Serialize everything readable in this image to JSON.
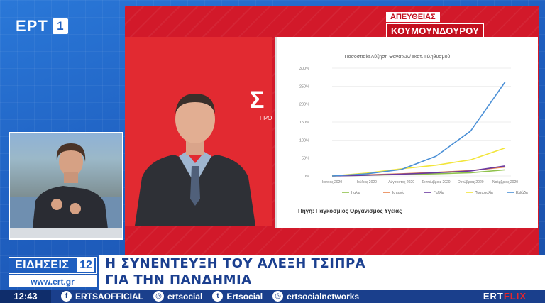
{
  "channel": {
    "name": "ΕΡΤ",
    "number": "1"
  },
  "live_badge": {
    "top": "ΑΠΕΥΘΕΙΑΣ",
    "bottom": "ΚΟΥΜΟΥΝΔΟΥΡΟΥ"
  },
  "video": {
    "logo_glyph": "Σ",
    "logo_sub": "ΠΡΟ"
  },
  "chart_data": {
    "type": "line",
    "title": "Ποσοστιαία Αύξηση Θανάτων/ εκατ. Πληθυσμού",
    "categories": [
      "Ιούνιος 2020",
      "Ιούλιος 2020",
      "Αύγουστος 2020",
      "Σεπτέμβριος 2020",
      "Οκτώβριος 2020",
      "Νοέμβριος 2020"
    ],
    "y_ticks": [
      "0%",
      "50%",
      "100%",
      "150%",
      "200%",
      "250%",
      "300%"
    ],
    "ylim": [
      0,
      300
    ],
    "series": [
      {
        "name": "Ιταλία",
        "color": "#8fc24b",
        "values": [
          0,
          2,
          4,
          6,
          9,
          17
        ]
      },
      {
        "name": "Ισπανία",
        "color": "#e8814a",
        "values": [
          0,
          3,
          6,
          10,
          15,
          25
        ]
      },
      {
        "name": "Γαλλία",
        "color": "#6b3aa0",
        "values": [
          0,
          2,
          5,
          9,
          14,
          28
        ]
      },
      {
        "name": "Πορτογαλία",
        "color": "#f2e53a",
        "values": [
          0,
          8,
          20,
          30,
          45,
          78
        ]
      },
      {
        "name": "Ελλάδα",
        "color": "#4a8fd6",
        "values": [
          0,
          6,
          18,
          55,
          125,
          262
        ]
      }
    ],
    "grid": true,
    "legend": "bottom"
  },
  "chart_source": "Πηγή: Παγκόσμιος Οργανισμός Υγείας",
  "news": {
    "label": "ΕΙΔΗΣΕΙΣ",
    "number": "12",
    "site": "www.ert.gr"
  },
  "headline": {
    "line1": "Η ΣΥΝΕΝΤΕΥΞΗ ΤΟΥ ΑΛΕΞΗ ΤΣΙΠΡΑ",
    "line2": "ΓΙΑ ΤΗΝ ΠΑΝΔΗΜΙΑ"
  },
  "social": {
    "time": "12:43",
    "items": [
      {
        "icon": "facebook-icon",
        "glyph": "f",
        "label": "ERTSAOFFICIAL"
      },
      {
        "icon": "instagram-icon",
        "glyph": "◎",
        "label": "ertsocial"
      },
      {
        "icon": "twitter-icon",
        "glyph": "t",
        "label": "Ertsocial"
      },
      {
        "icon": "instagram-icon",
        "glyph": "◎",
        "label": "ertsocialnetworks"
      }
    ],
    "ertflix_a": "ERT",
    "ertflix_b": "FLIX"
  }
}
